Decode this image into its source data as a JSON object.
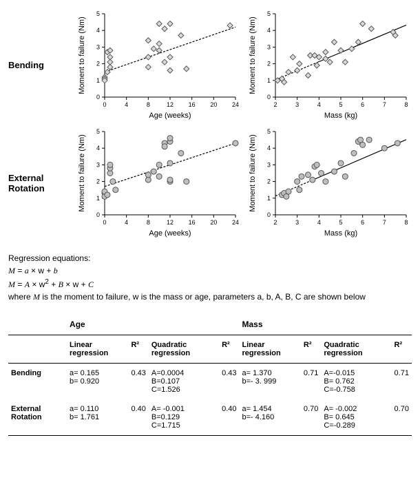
{
  "rows": [
    "Bending",
    "External Rotation"
  ],
  "axis": {
    "ylabel": "Moment to failure (Nm)",
    "age_xlabel": "Age (weeks)",
    "mass_xlabel": "Mass (kg)",
    "label_fontsize": 11,
    "tick_fontsize": 9,
    "axis_color": "#000000",
    "axis_width": 1,
    "background": "#ffffff"
  },
  "panels": {
    "bending_age": {
      "type": "scatter",
      "marker": "diamond",
      "marker_size": 8,
      "marker_fill": "#d9d9d9",
      "marker_stroke": "#555555",
      "xlim": [
        0,
        24
      ],
      "xtick_step": 4,
      "ylim": [
        0,
        5
      ],
      "ytick_step": 1,
      "line": {
        "a": 0.1125,
        "b": 1.5,
        "style": "dash"
      },
      "points": [
        [
          0,
          1.2
        ],
        [
          0,
          1.1
        ],
        [
          0,
          1.0
        ],
        [
          0.5,
          1.5
        ],
        [
          0.5,
          2.7
        ],
        [
          1,
          2.4
        ],
        [
          1,
          2.8
        ],
        [
          1,
          2.1
        ],
        [
          1,
          1.8
        ],
        [
          8,
          1.8
        ],
        [
          8,
          2.4
        ],
        [
          8,
          3.4
        ],
        [
          9,
          2.9
        ],
        [
          10,
          2.8
        ],
        [
          10,
          3.2
        ],
        [
          10,
          4.4
        ],
        [
          11,
          2.1
        ],
        [
          11,
          4.1
        ],
        [
          12,
          4.4
        ],
        [
          12,
          2.4
        ],
        [
          12,
          1.6
        ],
        [
          14,
          3.7
        ],
        [
          15,
          1.7
        ],
        [
          23,
          4.3
        ]
      ]
    },
    "bending_mass": {
      "type": "scatter",
      "marker": "diamond",
      "marker_size": 8,
      "marker_fill": "#d9d9d9",
      "marker_stroke": "#555555",
      "xlim": [
        2,
        8
      ],
      "xtick_step": 1,
      "ylim": [
        0,
        5
      ],
      "ytick_step": 1,
      "line": {
        "dashpart": {
          "a": 0.549,
          "b": -0.07,
          "xmax": 3.9
        },
        "solidpart": {
          "a": 0.549,
          "b": -0.07,
          "xmin": 3.9
        }
      },
      "points": [
        [
          2.1,
          1.0
        ],
        [
          2.3,
          1.1
        ],
        [
          2.4,
          0.9
        ],
        [
          2.6,
          1.5
        ],
        [
          2.8,
          2.4
        ],
        [
          3.0,
          1.6
        ],
        [
          3.1,
          2.0
        ],
        [
          3.5,
          1.3
        ],
        [
          3.6,
          2.5
        ],
        [
          3.8,
          2.5
        ],
        [
          3.9,
          1.9
        ],
        [
          4.0,
          2.4
        ],
        [
          4.3,
          2.7
        ],
        [
          4.3,
          2.3
        ],
        [
          4.5,
          2.1
        ],
        [
          4.7,
          3.3
        ],
        [
          5.0,
          2.8
        ],
        [
          5.2,
          2.1
        ],
        [
          5.5,
          2.9
        ],
        [
          5.8,
          3.3
        ],
        [
          6.0,
          4.4
        ],
        [
          6.4,
          4.1
        ],
        [
          7.4,
          3.9
        ],
        [
          7.5,
          3.7
        ]
      ]
    },
    "extrot_age": {
      "type": "scatter",
      "marker": "circle",
      "marker_size": 8,
      "marker_fill": "#bfbfbf",
      "marker_stroke": "#555555",
      "xlim": [
        0,
        24
      ],
      "xtick_step": 4,
      "ylim": [
        0,
        5
      ],
      "ytick_step": 1,
      "line": {
        "a": 0.1083,
        "b": 1.7,
        "style": "dash"
      },
      "points": [
        [
          0,
          1.3
        ],
        [
          0,
          1.1
        ],
        [
          0,
          1.4
        ],
        [
          0.5,
          1.2
        ],
        [
          1,
          2.5
        ],
        [
          1,
          2.8
        ],
        [
          1,
          3.0
        ],
        [
          1.5,
          2.0
        ],
        [
          2,
          1.5
        ],
        [
          8,
          2.1
        ],
        [
          8,
          2.4
        ],
        [
          9,
          2.6
        ],
        [
          10,
          3.0
        ],
        [
          10,
          2.3
        ],
        [
          11,
          4.3
        ],
        [
          11,
          4.1
        ],
        [
          12,
          4.4
        ],
        [
          12,
          3.1
        ],
        [
          12,
          2.0
        ],
        [
          12,
          2.1
        ],
        [
          12,
          4.6
        ],
        [
          14,
          3.7
        ],
        [
          15,
          2.0
        ],
        [
          24,
          4.3
        ]
      ]
    },
    "extrot_mass": {
      "type": "scatter",
      "marker": "circle",
      "marker_size": 8,
      "marker_fill": "#bfbfbf",
      "marker_stroke": "#555555",
      "xlim": [
        2,
        8
      ],
      "xtick_step": 1,
      "ylim": [
        0,
        5
      ],
      "ytick_step": 1,
      "line": {
        "dashpart": {
          "a": 0.564,
          "b": 0.0,
          "xmax": 3.6
        },
        "solidpart": {
          "a": 0.564,
          "b": 0.0,
          "xmin": 3.6
        }
      },
      "points": [
        [
          2.3,
          1.2
        ],
        [
          2.4,
          1.3
        ],
        [
          2.5,
          1.1
        ],
        [
          2.6,
          1.4
        ],
        [
          3.0,
          2.0
        ],
        [
          3.1,
          1.5
        ],
        [
          3.2,
          2.3
        ],
        [
          3.5,
          2.4
        ],
        [
          3.7,
          2.1
        ],
        [
          3.8,
          2.9
        ],
        [
          3.9,
          3.0
        ],
        [
          4.1,
          2.5
        ],
        [
          4.3,
          2.0
        ],
        [
          4.7,
          2.6
        ],
        [
          5.0,
          3.1
        ],
        [
          5.2,
          2.3
        ],
        [
          5.6,
          3.7
        ],
        [
          5.8,
          4.4
        ],
        [
          5.9,
          4.5
        ],
        [
          6.0,
          4.2
        ],
        [
          6.3,
          4.5
        ],
        [
          7.0,
          4.0
        ],
        [
          7.6,
          4.3
        ]
      ]
    }
  },
  "equations": {
    "intro": "Regression equations:",
    "eq1": "M = a × w + b",
    "eq2": "M = A × w² + B × w + C",
    "desc": "where M is the moment to failure, w is the mass or age, parameters a, b, A, B, C are shown below"
  },
  "table": {
    "group_headers": [
      "Age",
      "Mass"
    ],
    "col_headers": [
      "Linear regression",
      "R²",
      "Quadratic regression",
      "R²",
      "Linear regression",
      "R²",
      "Quadratic regression",
      "R²"
    ],
    "rows": [
      {
        "label": "Bending",
        "cells": [
          "a= 0.165\nb= 0.920",
          "0.43",
          "A=0.0004\nB=0.107\nC=1.526",
          "0.43",
          "a= 1.370\nb=- 3. 999",
          "0.71",
          "A=-0.015\nB= 0.762\nC=-0.758",
          "0.71"
        ]
      },
      {
        "label": "External Rotation",
        "cells": [
          "a= 0.110\nb= 1.761",
          "0.40",
          "A= -0.001\nB=0.129\nC=1.715",
          "0.40",
          "a= 1.454\nb=- 4.160",
          "0.70",
          "A= -0.002\nB= 0.645\nC=-0.289",
          "0.70"
        ]
      }
    ]
  }
}
